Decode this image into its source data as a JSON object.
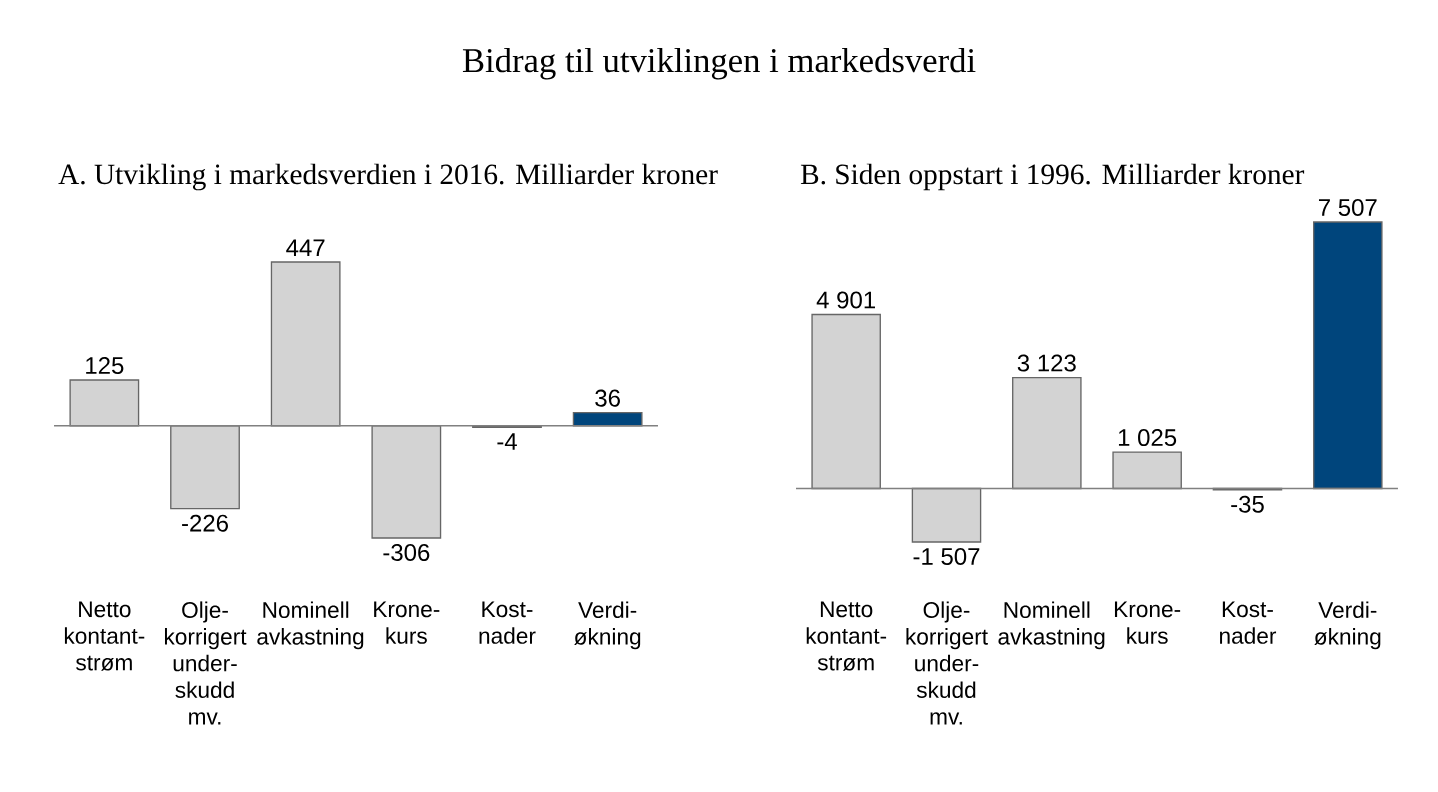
{
  "chart_data": [
    {
      "type": "bar",
      "title": "Bidrag til utviklingen i markedsverdi",
      "subtitle": "A.  Utvikling i markedsverdien i 2016. Milliarder kroner",
      "categories": [
        "Netto kontant- strøm",
        "Olje- korrigert under- skudd mv.",
        "Nominell avkastning",
        "Krone- kurs",
        "Kost- nader",
        "Verdi- økning"
      ],
      "values": [
        125,
        -226,
        447,
        -306,
        -4,
        36
      ],
      "colors": [
        "#d3d3d3",
        "#d3d3d3",
        "#d3d3d3",
        "#d3d3d3",
        "#00457c",
        "#00457c"
      ],
      "value_labels": [
        "125",
        "-226",
        "447",
        "-306",
        "-4",
        "36"
      ]
    },
    {
      "type": "bar",
      "subtitle": "B.  Siden oppstart i 1996. Milliarder kroner",
      "categories": [
        "Netto kontant- strøm",
        "Olje- korrigert under- skudd mv.",
        "Nominell avkastning",
        "Krone- kurs",
        "Kost- nader",
        "Verdi- økning"
      ],
      "values": [
        4901,
        -1507,
        3123,
        1025,
        -35,
        7507
      ],
      "colors": [
        "#d3d3d3",
        "#d3d3d3",
        "#d3d3d3",
        "#d3d3d3",
        "#00457c",
        "#00457c"
      ],
      "value_labels": [
        "4 901",
        "-1 507",
        "3 123",
        "1 025",
        "-35",
        "7 507"
      ]
    }
  ]
}
